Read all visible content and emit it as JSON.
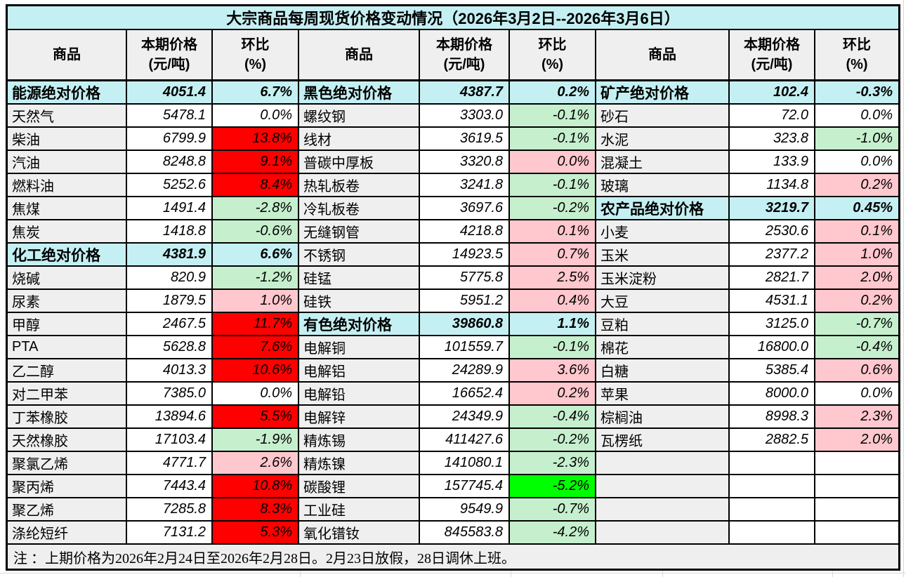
{
  "title": "大宗商品每周现货价格变动情况（2026年3月2日--2026年3月6日）",
  "header": {
    "commodity": "商品",
    "price_line1": "本期价格",
    "price_line2": "(元/吨)",
    "change_line1": "环比",
    "change_line2": "(%)"
  },
  "footnote": "注 ：上期价格为2026年2月24日至2026年2月28日。2月23日放假，28日调休上班。",
  "colors": {
    "accent_cyan": "#C5F0F3",
    "cell_gray": "#EFEFEF",
    "surge_bg": "#FF0000",
    "surge_text": "#3F6B2E",
    "up_bg": "#FFC7CE",
    "up_text": "#9C0006",
    "down_bg": "#C6EFCE",
    "down_text": "#006100",
    "plunge_bg": "#00FF00",
    "plunge_text": "#006100",
    "grid_line": "#D9D9D9",
    "border": "#000000"
  },
  "groups": [
    {
      "rows": [
        {
          "name": "能源绝对价格",
          "price": "4051.4",
          "change": "6.7%",
          "style": "section"
        },
        {
          "name": "天然气",
          "price": "5478.1",
          "change": "0.0%",
          "style": "flat"
        },
        {
          "name": "柴油",
          "price": "6799.9",
          "change": "13.8%",
          "style": "surge"
        },
        {
          "name": "汽油",
          "price": "8248.8",
          "change": "9.1%",
          "style": "surge"
        },
        {
          "name": "燃料油",
          "price": "5252.6",
          "change": "8.4%",
          "style": "surge"
        },
        {
          "name": "焦煤",
          "price": "1491.4",
          "change": "-2.8%",
          "style": "down"
        },
        {
          "name": "焦炭",
          "price": "1418.8",
          "change": "-0.6%",
          "style": "down"
        },
        {
          "name": "化工绝对价格",
          "price": "4381.9",
          "change": "6.6%",
          "style": "section"
        },
        {
          "name": "烧碱",
          "price": "820.9",
          "change": "-1.2%",
          "style": "down"
        },
        {
          "name": "尿素",
          "price": "1879.5",
          "change": "1.0%",
          "style": "up"
        },
        {
          "name": "甲醇",
          "price": "2467.5",
          "change": "11.7%",
          "style": "surge"
        },
        {
          "name": "PTA",
          "price": "5628.8",
          "change": "7.6%",
          "style": "surge"
        },
        {
          "name": "乙二醇",
          "price": "4013.3",
          "change": "10.6%",
          "style": "surge"
        },
        {
          "name": "对二甲苯",
          "price": "7385.0",
          "change": "0.0%",
          "style": "flat"
        },
        {
          "name": "丁苯橡胶",
          "price": "13894.6",
          "change": "5.5%",
          "style": "surge"
        },
        {
          "name": "天然橡胶",
          "price": "17103.4",
          "change": "-1.9%",
          "style": "down"
        },
        {
          "name": "聚氯乙烯",
          "price": "4771.7",
          "change": "2.6%",
          "style": "up"
        },
        {
          "name": "聚丙烯",
          "price": "7443.4",
          "change": "10.8%",
          "style": "surge"
        },
        {
          "name": "聚乙烯",
          "price": "7285.8",
          "change": "8.3%",
          "style": "surge"
        },
        {
          "name": "涤纶短纤",
          "price": "7131.2",
          "change": "5.3%",
          "style": "surge"
        }
      ]
    },
    {
      "rows": [
        {
          "name": "黑色绝对价格",
          "price": "4387.7",
          "change": "0.2%",
          "style": "section"
        },
        {
          "name": "螺纹钢",
          "price": "3303.0",
          "change": "-0.1%",
          "style": "down"
        },
        {
          "name": "线材",
          "price": "3619.5",
          "change": "-0.1%",
          "style": "down"
        },
        {
          "name": "普碳中厚板",
          "price": "3320.8",
          "change": "0.0%",
          "style": "up"
        },
        {
          "name": "热轧板卷",
          "price": "3241.8",
          "change": "-0.1%",
          "style": "down"
        },
        {
          "name": "冷轧板卷",
          "price": "3697.6",
          "change": "-0.2%",
          "style": "down"
        },
        {
          "name": "无缝钢管",
          "price": "4218.8",
          "change": "0.1%",
          "style": "up"
        },
        {
          "name": "不锈钢",
          "price": "14923.5",
          "change": "0.7%",
          "style": "up"
        },
        {
          "name": "硅锰",
          "price": "5775.8",
          "change": "2.5%",
          "style": "up"
        },
        {
          "name": "硅铁",
          "price": "5951.2",
          "change": "0.4%",
          "style": "up"
        },
        {
          "name": "有色绝对价格",
          "price": "39860.8",
          "change": "1.1%",
          "style": "section"
        },
        {
          "name": "电解铜",
          "price": "101559.7",
          "change": "-0.1%",
          "style": "down"
        },
        {
          "name": "电解铝",
          "price": "24289.9",
          "change": "3.6%",
          "style": "up"
        },
        {
          "name": "电解铅",
          "price": "16652.4",
          "change": "0.2%",
          "style": "up"
        },
        {
          "name": "电解锌",
          "price": "24349.9",
          "change": "-0.4%",
          "style": "down"
        },
        {
          "name": "精炼锡",
          "price": "411427.6",
          "change": "-0.2%",
          "style": "down"
        },
        {
          "name": "精炼镍",
          "price": "141080.1",
          "change": "-2.3%",
          "style": "down"
        },
        {
          "name": "碳酸锂",
          "price": "157745.4",
          "change": "-5.2%",
          "style": "plunge"
        },
        {
          "name": "工业硅",
          "price": "9549.9",
          "change": "-0.7%",
          "style": "down"
        },
        {
          "name": "氧化镨钕",
          "price": "845583.8",
          "change": "-4.2%",
          "style": "down"
        }
      ]
    },
    {
      "rows": [
        {
          "name": "矿产绝对价格",
          "price": "102.4",
          "change": "-0.3%",
          "style": "section"
        },
        {
          "name": "砂石",
          "price": "72.0",
          "change": "0.0%",
          "style": "flat"
        },
        {
          "name": "水泥",
          "price": "323.8",
          "change": "-1.0%",
          "style": "down"
        },
        {
          "name": "混凝土",
          "price": "133.9",
          "change": "0.0%",
          "style": "flat"
        },
        {
          "name": "玻璃",
          "price": "1134.8",
          "change": "0.2%",
          "style": "up"
        },
        {
          "name": "农产品绝对价格",
          "price": "3219.7",
          "change": "0.45%",
          "style": "section"
        },
        {
          "name": "小麦",
          "price": "2530.6",
          "change": "0.1%",
          "style": "up"
        },
        {
          "name": "玉米",
          "price": "2377.2",
          "change": "1.0%",
          "style": "up"
        },
        {
          "name": "玉米淀粉",
          "price": "2821.7",
          "change": "2.0%",
          "style": "up"
        },
        {
          "name": "大豆",
          "price": "4531.1",
          "change": "0.2%",
          "style": "up"
        },
        {
          "name": "豆粕",
          "price": "3125.0",
          "change": "-0.7%",
          "style": "down"
        },
        {
          "name": "棉花",
          "price": "16800.0",
          "change": "-0.4%",
          "style": "down"
        },
        {
          "name": "白糖",
          "price": "5385.4",
          "change": "0.6%",
          "style": "up"
        },
        {
          "name": "苹果",
          "price": "8000.0",
          "change": "0.0%",
          "style": "flat"
        },
        {
          "name": "棕榈油",
          "price": "8998.3",
          "change": "2.3%",
          "style": "up"
        },
        {
          "name": "瓦楞纸",
          "price": "2882.5",
          "change": "2.0%",
          "style": "up"
        },
        {
          "name": "",
          "price": "",
          "change": "",
          "style": "empty"
        },
        {
          "name": "",
          "price": "",
          "change": "",
          "style": "empty"
        },
        {
          "name": "",
          "price": "",
          "change": "",
          "style": "empty"
        },
        {
          "name": "",
          "price": "",
          "change": "",
          "style": "empty"
        }
      ]
    }
  ]
}
